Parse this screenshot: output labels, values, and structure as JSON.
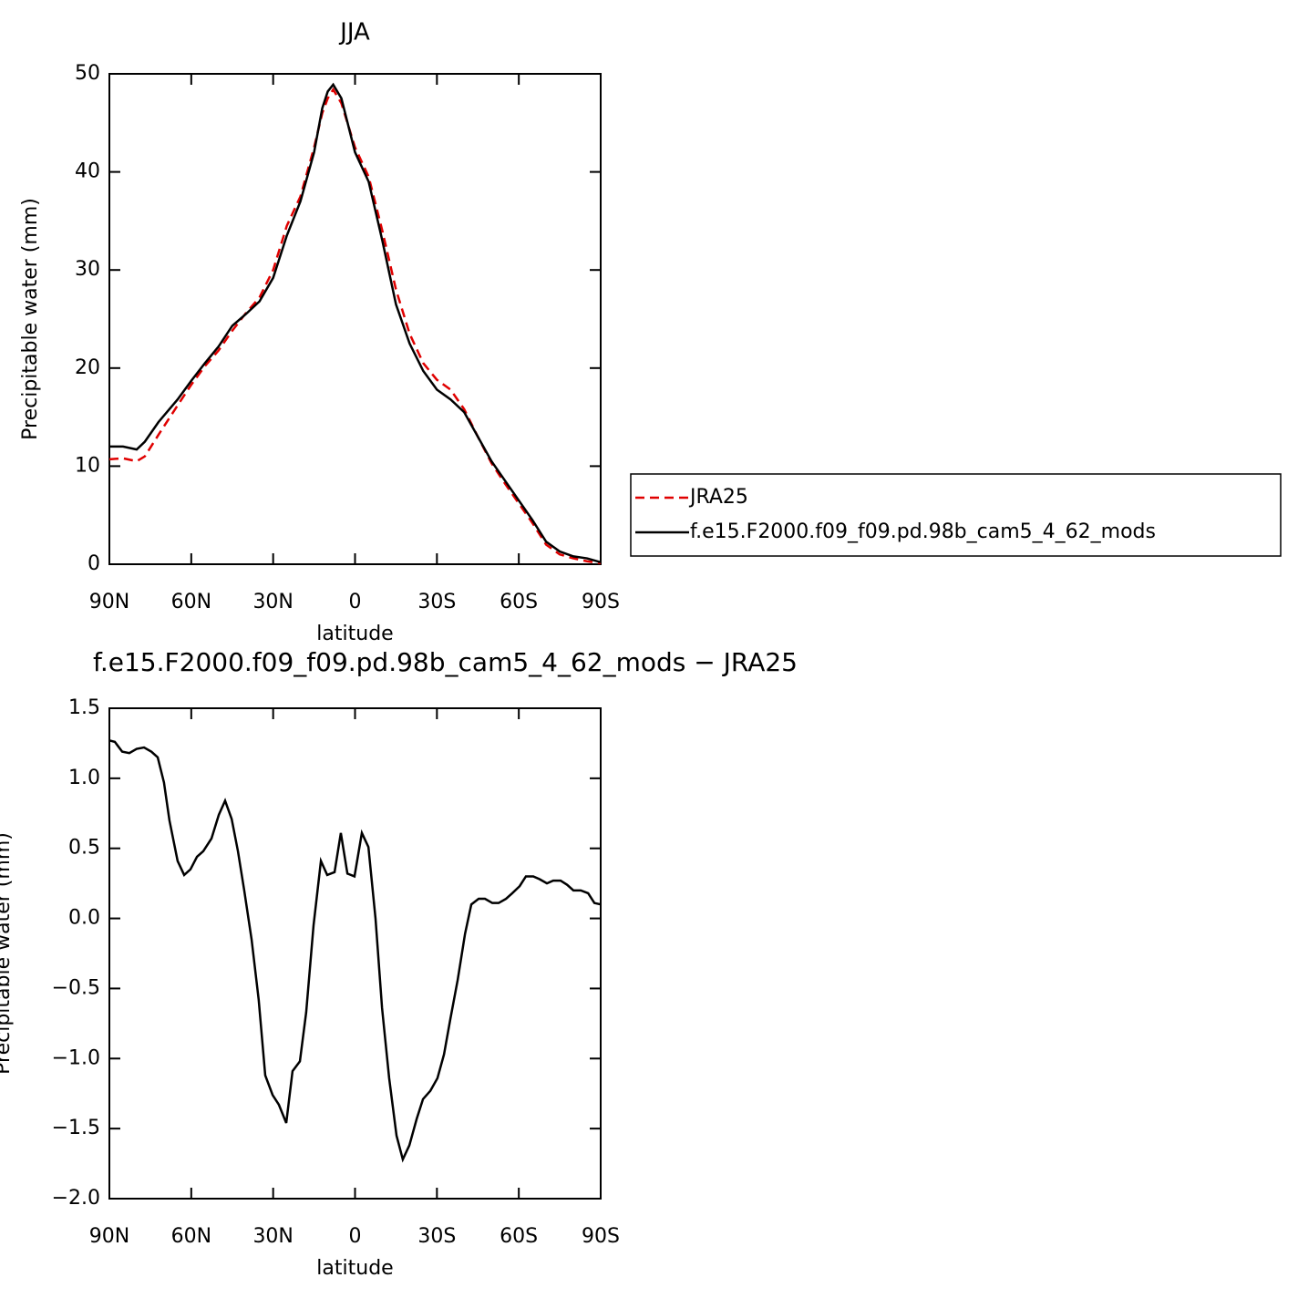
{
  "chart_data": [
    {
      "type": "line",
      "title": "JJA",
      "xlabel": "latitude",
      "ylabel": "Precipitable water (mm)",
      "x": [
        90,
        85,
        80,
        77,
        72,
        65,
        60,
        55,
        50,
        45,
        40,
        35,
        30,
        25,
        20,
        15,
        12,
        10,
        8,
        5,
        0,
        -5,
        -10,
        -15,
        -20,
        -25,
        -30,
        -35,
        -40,
        -45,
        -50,
        -55,
        -60,
        -65,
        -70,
        -75,
        -80,
        -85,
        -90
      ],
      "series": [
        {
          "name": "JRA25",
          "color": "#e00000",
          "line_style": "dashed",
          "values": [
            10.7,
            10.8,
            10.5,
            11.0,
            13.2,
            16.2,
            18.3,
            20.2,
            21.8,
            23.8,
            25.6,
            27.2,
            30,
            34.5,
            37.5,
            42.5,
            46,
            47.5,
            48.4,
            47,
            42.5,
            39.5,
            34,
            28,
            23.5,
            20.5,
            18.8,
            17.8,
            15.8,
            13,
            10.3,
            8.2,
            6.2,
            4.2,
            2,
            1,
            0.6,
            0.3,
            0.1
          ]
        },
        {
          "name": "f.e15.F2000.f09_f09.pd.98b_cam5_4_62_mods",
          "color": "#000000",
          "line_style": "solid",
          "values": [
            12.0,
            12.0,
            11.7,
            12.5,
            14.5,
            16.8,
            18.7,
            20.5,
            22.2,
            24.3,
            25.5,
            26.8,
            29.2,
            33.5,
            37.0,
            42,
            46.5,
            48.2,
            48.9,
            47.5,
            42,
            39,
            33,
            26.5,
            22.5,
            19.7,
            17.8,
            16.8,
            15.5,
            13,
            10.5,
            8.5,
            6.5,
            4.5,
            2.3,
            1.3,
            0.8,
            0.6,
            0.2
          ]
        }
      ],
      "xlim": [
        90,
        -90
      ],
      "xticks": [
        {
          "value": 90,
          "label": "90N"
        },
        {
          "value": 60,
          "label": "60N"
        },
        {
          "value": 30,
          "label": "30N"
        },
        0,
        {
          "value": -30,
          "label": "30S"
        },
        {
          "value": -60,
          "label": "60S"
        },
        {
          "value": -90,
          "label": "90S"
        }
      ],
      "ylim": [
        0,
        50
      ],
      "yticks": [
        0,
        10,
        20,
        30,
        40,
        50
      ],
      "legend": "right"
    },
    {
      "type": "line",
      "title": "f.e15.F2000.f09_f09.pd.98b_cam5_4_62_mods − JRA25",
      "xlabel": "latitude",
      "ylabel": "Precipitable water (mm)",
      "x": [
        90,
        88,
        85.3,
        82.7,
        80,
        77.3,
        74.6,
        72.3,
        70,
        68,
        65,
        62.6,
        60.3,
        57.9,
        55.6,
        52.6,
        49.9,
        47.6,
        45.2,
        42.9,
        40.6,
        37.9,
        35.3,
        32.9,
        30.2,
        27.9,
        25.2,
        22.9,
        20.2,
        17.9,
        15.2,
        12.5,
        10.2,
        7.5,
        5.2,
        2.8,
        0.2,
        -2.5,
        -4.9,
        -7.5,
        -9.9,
        -12.5,
        -15.2,
        -17.5,
        -19.9,
        -22.6,
        -24.9,
        -27.6,
        -30.2,
        -32.6,
        -34.9,
        -37.6,
        -40.3,
        -42.6,
        -45.3,
        -47.6,
        -50.3,
        -52.6,
        -55.3,
        -57.6,
        -60.3,
        -62.6,
        -65.3,
        -67.6,
        -70.3,
        -72.6,
        -75.3,
        -77.7,
        -80,
        -82.7,
        -85.4,
        -87.7,
        -90
      ],
      "series": [
        {
          "name": "f.e15.F2000.f09_f09.pd.98b_cam5_4_62_mods − JRA25",
          "color": "#000000",
          "line_style": "solid",
          "values": [
            1.27,
            1.26,
            1.19,
            1.18,
            1.21,
            1.22,
            1.19,
            1.15,
            0.97,
            0.7,
            0.41,
            0.31,
            0.35,
            0.44,
            0.48,
            0.57,
            0.74,
            0.84,
            0.71,
            0.48,
            0.2,
            -0.15,
            -0.58,
            -1.12,
            -1.26,
            -1.33,
            -1.46,
            -1.09,
            -1.02,
            -0.67,
            -0.05,
            0.41,
            0.31,
            0.33,
            0.61,
            0.32,
            0.3,
            0.61,
            0.51,
            0,
            -0.64,
            -1.14,
            -1.55,
            -1.72,
            -1.62,
            -1.43,
            -1.29,
            -1.23,
            -1.14,
            -0.97,
            -0.72,
            -0.44,
            -0.11,
            0.1,
            0.14,
            0.14,
            0.11,
            0.11,
            0.14,
            0.18,
            0.23,
            0.3,
            0.3,
            0.28,
            0.25,
            0.27,
            0.27,
            0.24,
            0.2,
            0.2,
            0.18,
            0.11,
            0.1
          ]
        }
      ],
      "xlim": [
        90,
        -90
      ],
      "xticks": [
        {
          "value": 90,
          "label": "90N"
        },
        {
          "value": 60,
          "label": "60N"
        },
        {
          "value": 30,
          "label": "30N"
        },
        0,
        {
          "value": -30,
          "label": "30S"
        },
        {
          "value": -60,
          "label": "60S"
        },
        {
          "value": -90,
          "label": "90S"
        }
      ],
      "ylim": [
        -2.0,
        1.5
      ],
      "yticks": [
        {
          "value": -2.0,
          "label": "−2.0"
        },
        {
          "value": -1.5,
          "label": "−1.5"
        },
        {
          "value": -1.0,
          "label": "−1.0"
        },
        {
          "value": -0.5,
          "label": "−0.5"
        },
        {
          "value": 0,
          "label": "0.0"
        },
        {
          "value": 0.5,
          "label": "0.5"
        },
        {
          "value": 1.0,
          "label": "1.0"
        },
        {
          "value": 1.5,
          "label": "1.5"
        }
      ]
    }
  ]
}
